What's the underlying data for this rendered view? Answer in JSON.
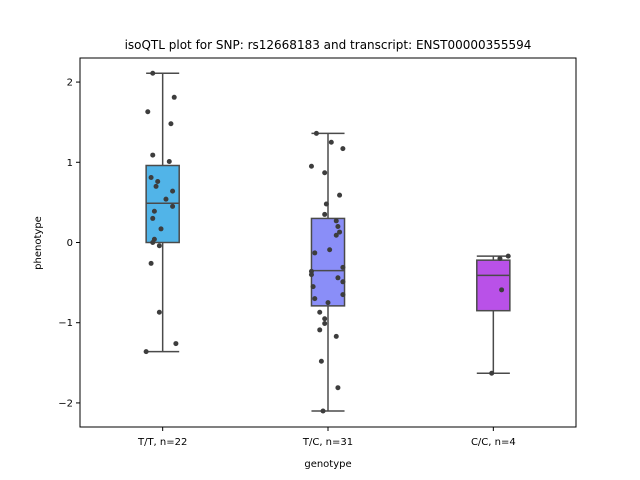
{
  "chart_data": {
    "type": "box",
    "title": "isoQTL plot for SNP: rs12668183 and transcript: ENST00000355594",
    "xlabel": "genotype",
    "ylabel": "phenotype",
    "ylim": [
      -2.3,
      2.3
    ],
    "yticks": [
      -2,
      -1,
      0,
      1,
      2
    ],
    "ytick_labels": [
      "−2",
      "−1",
      "0",
      "1",
      "2"
    ],
    "grid": false,
    "categories": [
      "T/T, n=22",
      "T/C, n=31",
      "C/C, n=4"
    ],
    "boxes": [
      {
        "category": "T/T, n=22",
        "color": "#51b4e8",
        "whisker_low": -1.36,
        "q1": 0.0,
        "median": 0.49,
        "q3": 0.96,
        "whisker_high": 2.11
      },
      {
        "category": "T/C, n=31",
        "color": "#8a8ef8",
        "whisker_low": -2.1,
        "q1": -0.79,
        "median": -0.35,
        "q3": 0.3,
        "whisker_high": 1.36
      },
      {
        "category": "C/C, n=4",
        "color": "#b951e8",
        "whisker_low": -1.63,
        "q1": -0.85,
        "median": -0.41,
        "q3": -0.22,
        "whisker_high": -0.17
      }
    ],
    "points": [
      [
        {
          "jitter": -0.06,
          "y": 2.11
        },
        {
          "jitter": 0.07,
          "y": 1.81
        },
        {
          "jitter": -0.09,
          "y": 1.63
        },
        {
          "jitter": 0.05,
          "y": 1.48
        },
        {
          "jitter": -0.06,
          "y": 1.09
        },
        {
          "jitter": 0.04,
          "y": 1.01
        },
        {
          "jitter": -0.07,
          "y": 0.81
        },
        {
          "jitter": -0.03,
          "y": 0.76
        },
        {
          "jitter": -0.04,
          "y": 0.7
        },
        {
          "jitter": 0.06,
          "y": 0.64
        },
        {
          "jitter": 0.02,
          "y": 0.54
        },
        {
          "jitter": 0.06,
          "y": 0.45
        },
        {
          "jitter": -0.05,
          "y": 0.39
        },
        {
          "jitter": -0.06,
          "y": 0.3
        },
        {
          "jitter": -0.01,
          "y": 0.17
        },
        {
          "jitter": -0.05,
          "y": 0.04
        },
        {
          "jitter": -0.06,
          "y": 0.0
        },
        {
          "jitter": -0.02,
          "y": -0.04
        },
        {
          "jitter": -0.07,
          "y": -0.26
        },
        {
          "jitter": -0.02,
          "y": -0.87
        },
        {
          "jitter": 0.08,
          "y": -1.26
        },
        {
          "jitter": -0.1,
          "y": -1.36
        }
      ],
      [
        {
          "jitter": -0.07,
          "y": 1.36
        },
        {
          "jitter": 0.02,
          "y": 1.25
        },
        {
          "jitter": 0.09,
          "y": 1.17
        },
        {
          "jitter": -0.1,
          "y": 0.95
        },
        {
          "jitter": -0.02,
          "y": 0.87
        },
        {
          "jitter": 0.07,
          "y": 0.59
        },
        {
          "jitter": -0.01,
          "y": 0.48
        },
        {
          "jitter": -0.02,
          "y": 0.35
        },
        {
          "jitter": 0.05,
          "y": 0.27
        },
        {
          "jitter": 0.06,
          "y": 0.2
        },
        {
          "jitter": 0.07,
          "y": 0.13
        },
        {
          "jitter": 0.05,
          "y": 0.09
        },
        {
          "jitter": 0.01,
          "y": -0.09
        },
        {
          "jitter": -0.08,
          "y": -0.13
        },
        {
          "jitter": 0.09,
          "y": -0.31
        },
        {
          "jitter": -0.1,
          "y": -0.36
        },
        {
          "jitter": -0.1,
          "y": -0.4
        },
        {
          "jitter": 0.06,
          "y": -0.44
        },
        {
          "jitter": 0.09,
          "y": -0.49
        },
        {
          "jitter": -0.09,
          "y": -0.55
        },
        {
          "jitter": 0.09,
          "y": -0.65
        },
        {
          "jitter": -0.08,
          "y": -0.7
        },
        {
          "jitter": 0.0,
          "y": -0.75
        },
        {
          "jitter": -0.02,
          "y": -0.95
        },
        {
          "jitter": -0.02,
          "y": -1.01
        },
        {
          "jitter": -0.05,
          "y": -1.09
        },
        {
          "jitter": 0.05,
          "y": -1.17
        },
        {
          "jitter": -0.04,
          "y": -1.48
        },
        {
          "jitter": 0.06,
          "y": -1.81
        },
        {
          "jitter": -0.03,
          "y": -2.1
        },
        {
          "jitter": -0.05,
          "y": -0.87
        }
      ],
      [
        {
          "jitter": 0.09,
          "y": -0.17
        },
        {
          "jitter": 0.04,
          "y": -0.2
        },
        {
          "jitter": 0.05,
          "y": -0.59
        },
        {
          "jitter": -0.01,
          "y": -1.63
        }
      ]
    ],
    "point_color": "#3d3d3d",
    "line_color": "#4a4a4a"
  }
}
